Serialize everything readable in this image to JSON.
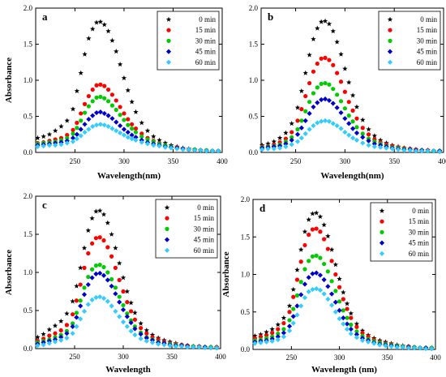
{
  "figure": {
    "series_styles": [
      {
        "name": "0 min",
        "color": "#000000",
        "marker": "star"
      },
      {
        "name": "15 min",
        "color": "#ff0000",
        "marker": "circle"
      },
      {
        "name": "30 min",
        "color": "#00cc00",
        "marker": "circle"
      },
      {
        "name": "45 min",
        "color": "#0000cc",
        "marker": "diamond"
      },
      {
        "name": "60 min",
        "color": "#33ccff",
        "marker": "diamond"
      }
    ]
  },
  "chart_data": [
    {
      "type": "scatter",
      "panel_label": "a",
      "xlabel": "Wavelength(nm)",
      "ylabel": "Absorbance",
      "xlim": [
        210,
        400
      ],
      "ylim": [
        0.0,
        2.0
      ],
      "xticks": [
        250,
        300,
        350,
        400
      ],
      "yticks": [
        "0.0",
        "0.5",
        "1.0",
        "1.5",
        "2.0"
      ],
      "legend_position": "top-right",
      "x": [
        212,
        218,
        224,
        230,
        236,
        242,
        248,
        252,
        256,
        260,
        264,
        268,
        272,
        276,
        280,
        284,
        288,
        292,
        296,
        300,
        304,
        308,
        312,
        318,
        324,
        330,
        336,
        342,
        348,
        354,
        360,
        366,
        372,
        378,
        384,
        390,
        396
      ],
      "series": [
        {
          "name": "0 min",
          "values": [
            0.2,
            0.22,
            0.25,
            0.3,
            0.36,
            0.44,
            0.6,
            0.85,
            1.1,
            1.36,
            1.58,
            1.71,
            1.8,
            1.81,
            1.77,
            1.68,
            1.55,
            1.4,
            1.22,
            1.03,
            0.86,
            0.7,
            0.56,
            0.41,
            0.3,
            0.22,
            0.17,
            0.13,
            0.1,
            0.08,
            0.06,
            0.05,
            0.04,
            0.03,
            0.02,
            0.02,
            0.02
          ]
        },
        {
          "name": "15 min",
          "values": [
            0.13,
            0.14,
            0.16,
            0.18,
            0.2,
            0.24,
            0.31,
            0.41,
            0.54,
            0.67,
            0.78,
            0.87,
            0.93,
            0.94,
            0.92,
            0.87,
            0.8,
            0.72,
            0.63,
            0.54,
            0.46,
            0.39,
            0.33,
            0.26,
            0.2,
            0.16,
            0.13,
            0.1,
            0.08,
            0.07,
            0.05,
            0.04,
            0.04,
            0.03,
            0.03,
            0.02,
            0.02
          ]
        },
        {
          "name": "30 min",
          "values": [
            0.12,
            0.13,
            0.14,
            0.15,
            0.17,
            0.2,
            0.26,
            0.34,
            0.44,
            0.55,
            0.64,
            0.71,
            0.76,
            0.77,
            0.75,
            0.71,
            0.65,
            0.59,
            0.52,
            0.45,
            0.38,
            0.33,
            0.28,
            0.22,
            0.18,
            0.15,
            0.12,
            0.1,
            0.08,
            0.06,
            0.05,
            0.04,
            0.04,
            0.03,
            0.03,
            0.02,
            0.02
          ]
        },
        {
          "name": "45 min",
          "values": [
            0.1,
            0.11,
            0.12,
            0.13,
            0.14,
            0.16,
            0.2,
            0.25,
            0.32,
            0.39,
            0.46,
            0.51,
            0.55,
            0.56,
            0.54,
            0.51,
            0.47,
            0.42,
            0.37,
            0.32,
            0.28,
            0.24,
            0.21,
            0.17,
            0.14,
            0.12,
            0.1,
            0.08,
            0.07,
            0.06,
            0.05,
            0.04,
            0.03,
            0.03,
            0.02,
            0.02,
            0.02
          ]
        },
        {
          "name": "60 min",
          "values": [
            0.08,
            0.09,
            0.1,
            0.1,
            0.11,
            0.13,
            0.15,
            0.19,
            0.23,
            0.28,
            0.32,
            0.36,
            0.38,
            0.39,
            0.38,
            0.36,
            0.33,
            0.3,
            0.27,
            0.24,
            0.21,
            0.19,
            0.17,
            0.14,
            0.12,
            0.1,
            0.09,
            0.07,
            0.06,
            0.05,
            0.04,
            0.04,
            0.03,
            0.03,
            0.02,
            0.02,
            0.02
          ]
        }
      ]
    },
    {
      "type": "scatter",
      "panel_label": "b",
      "xlabel": "Wavelength(nm)",
      "ylabel": "",
      "xlim": [
        215,
        400
      ],
      "ylim": [
        0.0,
        2.0
      ],
      "xticks": [
        250,
        300,
        350,
        400
      ],
      "yticks": [
        "0.0",
        "0.5",
        "1.0",
        "1.5",
        "2.0"
      ],
      "legend_position": "top-right",
      "x": [
        216,
        222,
        228,
        234,
        240,
        246,
        252,
        256,
        260,
        264,
        268,
        272,
        276,
        280,
        284,
        288,
        292,
        296,
        300,
        304,
        308,
        312,
        318,
        324,
        330,
        336,
        342,
        348,
        354,
        360,
        366,
        372,
        378,
        384,
        390,
        396
      ],
      "series": [
        {
          "name": "0 min",
          "values": [
            0.1,
            0.12,
            0.15,
            0.2,
            0.27,
            0.4,
            0.62,
            0.85,
            1.1,
            1.35,
            1.57,
            1.72,
            1.81,
            1.82,
            1.78,
            1.68,
            1.53,
            1.36,
            1.16,
            0.97,
            0.79,
            0.63,
            0.45,
            0.32,
            0.23,
            0.17,
            0.13,
            0.1,
            0.08,
            0.06,
            0.05,
            0.04,
            0.03,
            0.03,
            0.02,
            0.02
          ]
        },
        {
          "name": "15 min",
          "values": [
            0.08,
            0.09,
            0.11,
            0.14,
            0.19,
            0.28,
            0.44,
            0.6,
            0.78,
            0.96,
            1.12,
            1.23,
            1.3,
            1.31,
            1.28,
            1.21,
            1.1,
            0.98,
            0.84,
            0.7,
            0.58,
            0.47,
            0.34,
            0.25,
            0.18,
            0.14,
            0.11,
            0.09,
            0.07,
            0.06,
            0.05,
            0.04,
            0.03,
            0.03,
            0.02,
            0.02
          ]
        },
        {
          "name": "30 min",
          "values": [
            0.07,
            0.08,
            0.09,
            0.11,
            0.15,
            0.21,
            0.32,
            0.44,
            0.57,
            0.7,
            0.82,
            0.9,
            0.95,
            0.96,
            0.94,
            0.88,
            0.8,
            0.71,
            0.61,
            0.51,
            0.43,
            0.35,
            0.26,
            0.19,
            0.15,
            0.12,
            0.09,
            0.07,
            0.06,
            0.05,
            0.04,
            0.03,
            0.03,
            0.02,
            0.02,
            0.02
          ]
        },
        {
          "name": "45 min",
          "values": [
            0.06,
            0.07,
            0.08,
            0.09,
            0.12,
            0.17,
            0.25,
            0.34,
            0.44,
            0.54,
            0.63,
            0.69,
            0.73,
            0.74,
            0.72,
            0.68,
            0.62,
            0.55,
            0.47,
            0.4,
            0.33,
            0.27,
            0.21,
            0.16,
            0.12,
            0.1,
            0.08,
            0.06,
            0.05,
            0.04,
            0.04,
            0.03,
            0.03,
            0.02,
            0.02,
            0.02
          ]
        },
        {
          "name": "60 min",
          "values": [
            0.04,
            0.05,
            0.05,
            0.06,
            0.08,
            0.11,
            0.15,
            0.2,
            0.26,
            0.32,
            0.37,
            0.41,
            0.43,
            0.44,
            0.43,
            0.4,
            0.37,
            0.33,
            0.28,
            0.24,
            0.2,
            0.17,
            0.13,
            0.1,
            0.08,
            0.07,
            0.06,
            0.05,
            0.04,
            0.03,
            0.03,
            0.02,
            0.02,
            0.02,
            0.02,
            0.01
          ]
        }
      ]
    },
    {
      "type": "scatter",
      "panel_label": "c",
      "xlabel": "Wavelength",
      "ylabel": "Absorbance",
      "xlim": [
        210,
        400
      ],
      "ylim": [
        0.0,
        2.0
      ],
      "xticks": [
        250,
        300,
        350,
        400
      ],
      "yticks": [
        "0.0",
        "0.5",
        "1.0",
        "1.5",
        "2.0"
      ],
      "legend_position": "top-right",
      "x": [
        212,
        218,
        224,
        230,
        236,
        242,
        248,
        252,
        256,
        260,
        264,
        268,
        272,
        276,
        280,
        284,
        288,
        292,
        296,
        300,
        304,
        308,
        312,
        318,
        324,
        330,
        336,
        342,
        348,
        354,
        360,
        366,
        372,
        378,
        384,
        390,
        396
      ],
      "series": [
        {
          "name": "0 min",
          "values": [
            0.15,
            0.19,
            0.25,
            0.3,
            0.36,
            0.46,
            0.62,
            0.82,
            1.06,
            1.32,
            1.55,
            1.71,
            1.8,
            1.81,
            1.76,
            1.65,
            1.5,
            1.32,
            1.12,
            0.93,
            0.75,
            0.6,
            0.47,
            0.33,
            0.24,
            0.18,
            0.14,
            0.11,
            0.09,
            0.07,
            0.05,
            0.04,
            0.03,
            0.03,
            0.02,
            0.02,
            0.02
          ]
        },
        {
          "name": "15 min",
          "values": [
            0.1,
            0.13,
            0.17,
            0.2,
            0.24,
            0.31,
            0.45,
            0.63,
            0.84,
            1.06,
            1.25,
            1.38,
            1.45,
            1.46,
            1.42,
            1.33,
            1.21,
            1.06,
            0.9,
            0.75,
            0.61,
            0.49,
            0.38,
            0.27,
            0.2,
            0.15,
            0.12,
            0.09,
            0.07,
            0.06,
            0.05,
            0.04,
            0.03,
            0.03,
            0.02,
            0.02,
            0.02
          ]
        },
        {
          "name": "30 min",
          "values": [
            0.08,
            0.1,
            0.12,
            0.15,
            0.18,
            0.23,
            0.33,
            0.47,
            0.63,
            0.8,
            0.94,
            1.04,
            1.09,
            1.1,
            1.07,
            1.0,
            0.91,
            0.8,
            0.68,
            0.57,
            0.46,
            0.37,
            0.29,
            0.21,
            0.15,
            0.12,
            0.09,
            0.07,
            0.06,
            0.05,
            0.04,
            0.03,
            0.03,
            0.02,
            0.02,
            0.02,
            0.01
          ]
        },
        {
          "name": "45 min",
          "values": [
            0.06,
            0.08,
            0.1,
            0.12,
            0.15,
            0.2,
            0.29,
            0.41,
            0.56,
            0.71,
            0.84,
            0.93,
            0.98,
            0.99,
            0.96,
            0.9,
            0.82,
            0.72,
            0.61,
            0.51,
            0.42,
            0.34,
            0.26,
            0.19,
            0.14,
            0.11,
            0.08,
            0.07,
            0.05,
            0.04,
            0.04,
            0.03,
            0.02,
            0.02,
            0.02,
            0.01,
            0.01
          ]
        },
        {
          "name": "60 min",
          "values": [
            0.04,
            0.05,
            0.07,
            0.09,
            0.11,
            0.14,
            0.2,
            0.29,
            0.39,
            0.49,
            0.58,
            0.64,
            0.67,
            0.68,
            0.66,
            0.62,
            0.56,
            0.49,
            0.42,
            0.35,
            0.29,
            0.23,
            0.18,
            0.13,
            0.1,
            0.08,
            0.06,
            0.05,
            0.04,
            0.03,
            0.03,
            0.02,
            0.02,
            0.02,
            0.01,
            0.01,
            0.01
          ]
        }
      ]
    },
    {
      "type": "scatter",
      "panel_label": "d",
      "xlabel": "Wavelength (nm)",
      "ylabel": "Absorbance",
      "xlim": [
        210,
        400
      ],
      "ylim": [
        0.0,
        2.0
      ],
      "xticks": [
        250,
        300,
        350,
        400
      ],
      "yticks": [
        "0.0",
        "0.5",
        "1.0",
        "1.5",
        "2.0"
      ],
      "legend_position": "top-right",
      "x": [
        212,
        218,
        224,
        230,
        236,
        242,
        248,
        252,
        256,
        260,
        264,
        268,
        272,
        276,
        280,
        284,
        288,
        292,
        296,
        300,
        304,
        308,
        312,
        318,
        324,
        330,
        336,
        342,
        348,
        354,
        360,
        366,
        372,
        378,
        384,
        390,
        396
      ],
      "series": [
        {
          "name": "0 min",
          "values": [
            0.18,
            0.2,
            0.23,
            0.27,
            0.33,
            0.42,
            0.58,
            0.8,
            1.06,
            1.33,
            1.57,
            1.73,
            1.81,
            1.82,
            1.77,
            1.66,
            1.51,
            1.33,
            1.13,
            0.94,
            0.76,
            0.61,
            0.48,
            0.34,
            0.25,
            0.19,
            0.15,
            0.12,
            0.1,
            0.08,
            0.06,
            0.05,
            0.04,
            0.03,
            0.02,
            0.02,
            0.02
          ]
        },
        {
          "name": "15 min",
          "values": [
            0.15,
            0.17,
            0.19,
            0.22,
            0.27,
            0.35,
            0.5,
            0.7,
            0.93,
            1.17,
            1.39,
            1.53,
            1.6,
            1.61,
            1.57,
            1.47,
            1.34,
            1.18,
            1.0,
            0.83,
            0.67,
            0.54,
            0.42,
            0.3,
            0.22,
            0.17,
            0.13,
            0.1,
            0.08,
            0.07,
            0.05,
            0.04,
            0.04,
            0.03,
            0.02,
            0.02,
            0.02
          ]
        },
        {
          "name": "30 min",
          "values": [
            0.12,
            0.13,
            0.15,
            0.17,
            0.21,
            0.27,
            0.39,
            0.54,
            0.72,
            0.9,
            1.07,
            1.18,
            1.24,
            1.25,
            1.22,
            1.14,
            1.04,
            0.91,
            0.78,
            0.64,
            0.52,
            0.42,
            0.33,
            0.24,
            0.18,
            0.14,
            0.11,
            0.09,
            0.07,
            0.06,
            0.05,
            0.04,
            0.03,
            0.03,
            0.02,
            0.02,
            0.02
          ]
        },
        {
          "name": "45 min",
          "values": [
            0.1,
            0.11,
            0.12,
            0.14,
            0.17,
            0.22,
            0.31,
            0.44,
            0.58,
            0.73,
            0.87,
            0.96,
            1.01,
            1.02,
            0.99,
            0.93,
            0.84,
            0.74,
            0.63,
            0.52,
            0.42,
            0.34,
            0.27,
            0.2,
            0.15,
            0.12,
            0.09,
            0.07,
            0.06,
            0.05,
            0.04,
            0.03,
            0.03,
            0.02,
            0.02,
            0.02,
            0.01
          ]
        },
        {
          "name": "60 min",
          "values": [
            0.08,
            0.09,
            0.1,
            0.11,
            0.13,
            0.17,
            0.25,
            0.35,
            0.46,
            0.58,
            0.69,
            0.77,
            0.8,
            0.81,
            0.79,
            0.74,
            0.67,
            0.59,
            0.5,
            0.41,
            0.34,
            0.27,
            0.21,
            0.16,
            0.12,
            0.1,
            0.08,
            0.06,
            0.05,
            0.04,
            0.03,
            0.03,
            0.02,
            0.02,
            0.02,
            0.01,
            0.01
          ]
        }
      ]
    }
  ]
}
